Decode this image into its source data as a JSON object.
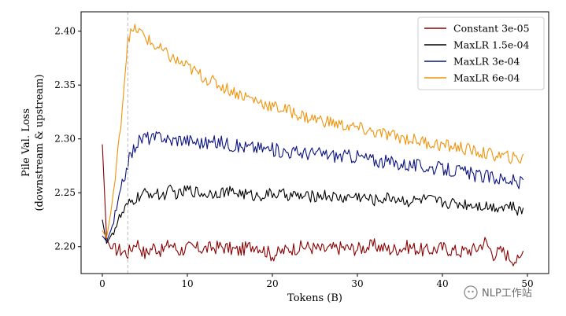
{
  "chart_data": {
    "type": "line",
    "xlabel": "Tokens (B)",
    "ylabel": [
      "Pile Val. Loss",
      "(downstream & upstream)"
    ],
    "xlim": [
      -2.5,
      52.5
    ],
    "ylim": [
      2.175,
      2.418
    ],
    "xticks": [
      0,
      10,
      20,
      30,
      40,
      50
    ],
    "yticks": [
      2.2,
      2.25,
      2.3,
      2.35,
      2.4
    ],
    "xtick_labels": [
      "0",
      "10",
      "20",
      "30",
      "40",
      "50"
    ],
    "ytick_labels": [
      "2.20",
      "2.25",
      "2.30",
      "2.35",
      "2.40"
    ],
    "reference_line": {
      "x": 3,
      "style": "dashed",
      "color": "#bbbbbb"
    },
    "legend_position": "top-right",
    "grid": false,
    "series": [
      {
        "name": "Constant 3e-05",
        "color": "#8b0000",
        "x": [
          0,
          0.5,
          1,
          2,
          3,
          4,
          5,
          6,
          7,
          8,
          9,
          10,
          12,
          14,
          16,
          18,
          20,
          22,
          24,
          26,
          28,
          30,
          32,
          34,
          36,
          38,
          40,
          42,
          44,
          45,
          46,
          47,
          48,
          49,
          49.5
        ],
        "y": [
          2.295,
          2.208,
          2.198,
          2.197,
          2.194,
          2.205,
          2.193,
          2.2,
          2.196,
          2.203,
          2.196,
          2.199,
          2.198,
          2.2,
          2.196,
          2.202,
          2.192,
          2.198,
          2.2,
          2.197,
          2.199,
          2.198,
          2.201,
          2.197,
          2.2,
          2.196,
          2.199,
          2.195,
          2.198,
          2.205,
          2.193,
          2.196,
          2.19,
          2.186,
          2.196
        ]
      },
      {
        "name": "MaxLR 1.5e-04",
        "color": "#000000",
        "x": [
          0,
          0.5,
          1,
          1.5,
          2,
          2.5,
          3,
          4,
          5,
          6,
          7,
          8,
          9,
          10,
          12,
          14,
          16,
          18,
          20,
          22,
          24,
          26,
          28,
          30,
          32,
          34,
          36,
          38,
          40,
          42,
          44,
          46,
          48,
          49,
          49.5
        ],
        "y": [
          2.225,
          2.203,
          2.21,
          2.218,
          2.226,
          2.232,
          2.238,
          2.245,
          2.249,
          2.25,
          2.247,
          2.252,
          2.248,
          2.253,
          2.249,
          2.251,
          2.25,
          2.247,
          2.249,
          2.248,
          2.246,
          2.248,
          2.245,
          2.247,
          2.243,
          2.246,
          2.242,
          2.244,
          2.241,
          2.24,
          2.239,
          2.237,
          2.238,
          2.232,
          2.236
        ]
      },
      {
        "name": "MaxLR 3e-04",
        "color": "#0b1280",
        "x": [
          0,
          0.5,
          1,
          1.5,
          2,
          2.5,
          3,
          4,
          5,
          6,
          7,
          8,
          9,
          10,
          12,
          14,
          16,
          18,
          20,
          22,
          24,
          26,
          28,
          30,
          32,
          34,
          36,
          38,
          40,
          42,
          44,
          46,
          48,
          49,
          49.5
        ],
        "y": [
          2.21,
          2.205,
          2.215,
          2.228,
          2.245,
          2.262,
          2.278,
          2.296,
          2.302,
          2.3,
          2.303,
          2.298,
          2.3,
          2.299,
          2.296,
          2.297,
          2.293,
          2.292,
          2.29,
          2.288,
          2.287,
          2.286,
          2.284,
          2.284,
          2.28,
          2.278,
          2.276,
          2.274,
          2.272,
          2.27,
          2.266,
          2.264,
          2.262,
          2.258,
          2.262
        ]
      },
      {
        "name": "MaxLR 6e-04",
        "color": "#f0930a",
        "x": [
          0,
          0.5,
          1,
          1.5,
          2,
          2.5,
          3,
          4,
          5,
          6,
          7,
          8,
          9,
          10,
          12,
          14,
          16,
          18,
          20,
          22,
          24,
          26,
          28,
          30,
          32,
          34,
          36,
          38,
          40,
          42,
          44,
          46,
          48,
          49,
          49.5
        ],
        "y": [
          2.215,
          2.208,
          2.232,
          2.262,
          2.3,
          2.345,
          2.395,
          2.402,
          2.395,
          2.387,
          2.382,
          2.376,
          2.371,
          2.367,
          2.357,
          2.349,
          2.342,
          2.336,
          2.33,
          2.326,
          2.32,
          2.317,
          2.313,
          2.31,
          2.306,
          2.303,
          2.3,
          2.297,
          2.294,
          2.292,
          2.288,
          2.285,
          2.283,
          2.28,
          2.286
        ]
      }
    ]
  },
  "watermark": {
    "text": "NLP工作站"
  }
}
